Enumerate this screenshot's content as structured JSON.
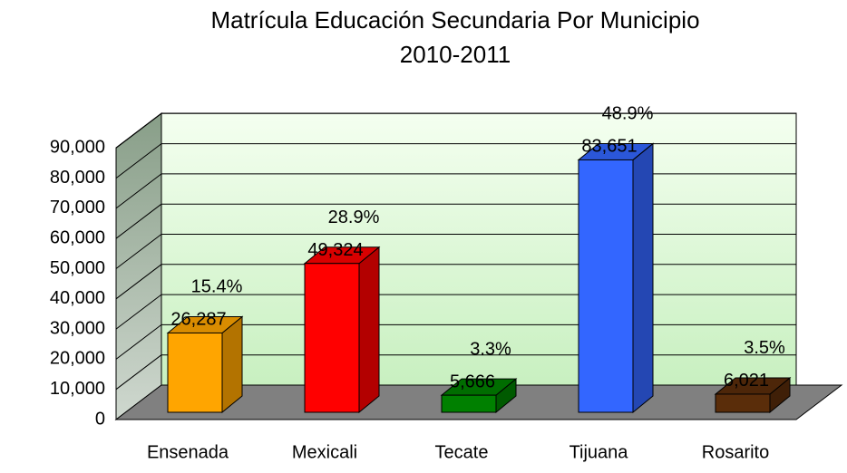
{
  "chart_data": {
    "type": "bar3d",
    "title": "Matrícula Educación Secundaria Por Municipio",
    "subtitle": "2010-2011",
    "categories": [
      "Ensenada",
      "Mexicali",
      "Tecate",
      "Tijuana",
      "Rosarito"
    ],
    "values": [
      26287,
      49324,
      5666,
      83651,
      6021
    ],
    "value_labels": [
      "26,287",
      "49,324",
      "5,666",
      "83,651",
      "6,021"
    ],
    "annotations": [
      "15.4%",
      "28.9%",
      "3.3%",
      "48.9%",
      "3.5%"
    ],
    "colors": [
      "#ffa500",
      "#ff0000",
      "#008000",
      "#3366ff",
      "#5a2d0a"
    ],
    "ylim": [
      0,
      100000
    ],
    "yticks": [
      0,
      {
        "value": 10000,
        "label": "10,000"
      },
      {
        "value": 20000,
        "label": "20,000"
      },
      {
        "value": 30000,
        "label": "30,000"
      },
      {
        "value": 40000,
        "label": "40,000"
      },
      {
        "value": 50000,
        "label": "50,000"
      },
      {
        "value": 60000,
        "label": "60,000"
      },
      {
        "value": 70000,
        "label": "70,000"
      },
      {
        "value": 80000,
        "label": "80,000"
      },
      {
        "value": 90000,
        "label": "90,000"
      }
    ],
    "grid": true
  }
}
